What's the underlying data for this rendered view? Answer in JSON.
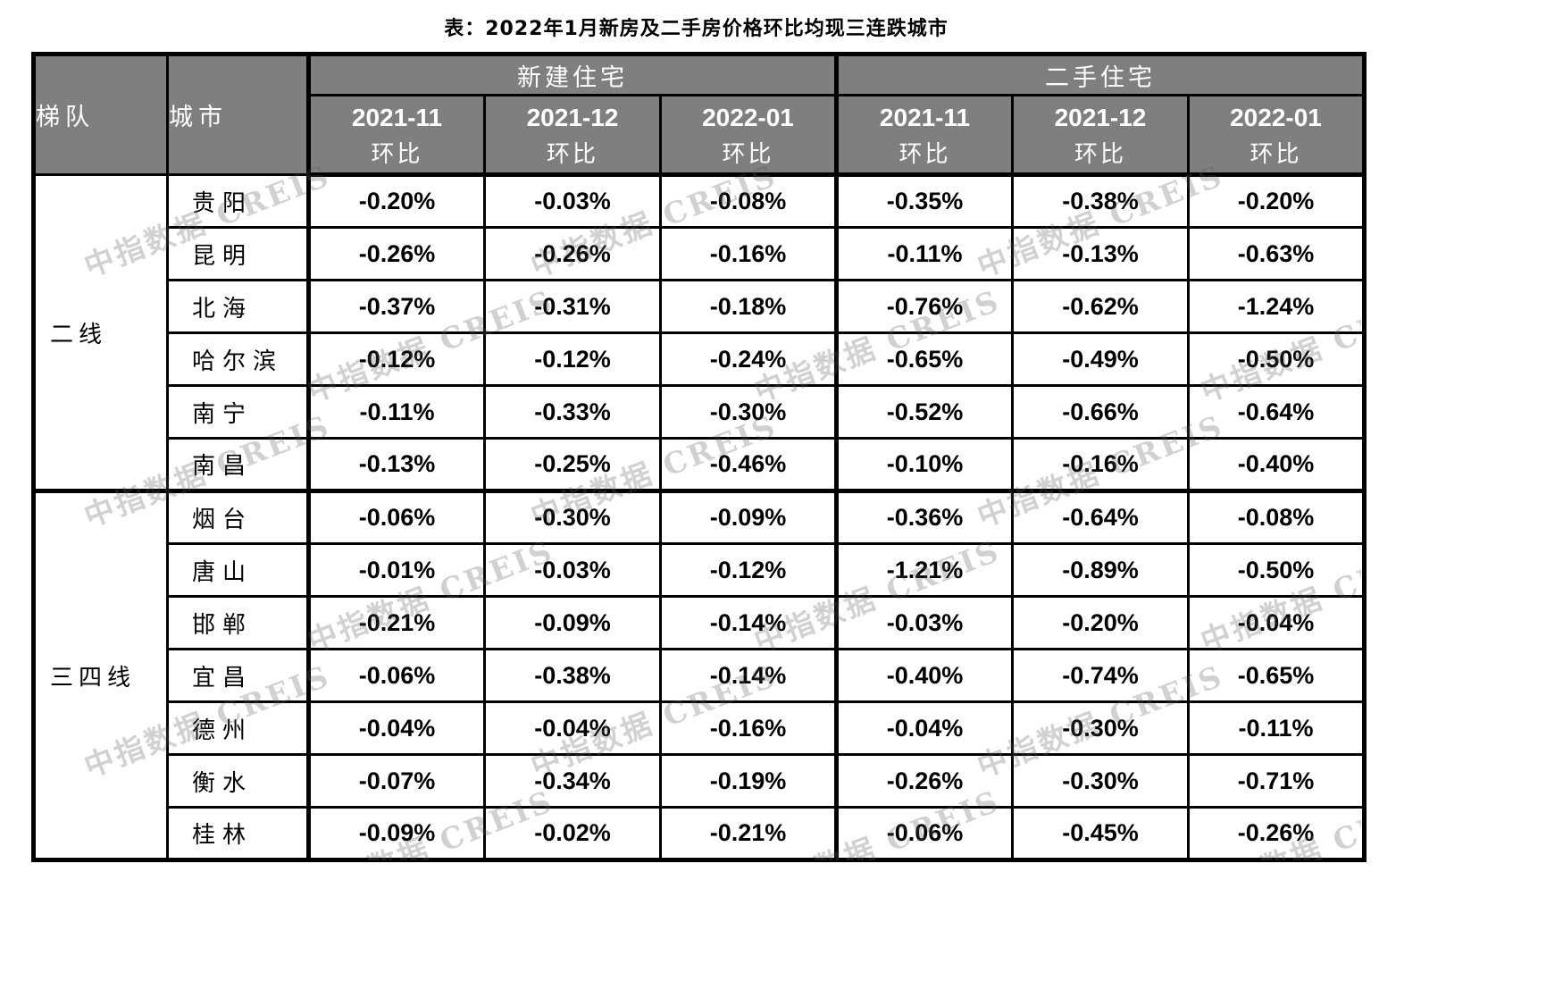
{
  "title": "表：2022年1月新房及二手房价格环比均现三连跌城市",
  "watermark": {
    "text": "中指数据 CREIS"
  },
  "table": {
    "corner_headers": [
      "梯队",
      "城市"
    ],
    "groups": [
      {
        "label": "新建住宅"
      },
      {
        "label": "二手住宅"
      }
    ],
    "periods": [
      "2021-11",
      "2021-12",
      "2022-01"
    ],
    "period_sub_label": "环比",
    "tiers": [
      {
        "label": "二线",
        "rows": [
          {
            "city": "贵阳",
            "new_home": [
              "-0.20%",
              "-0.03%",
              "-0.08%"
            ],
            "second_hand": [
              "-0.35%",
              "-0.38%",
              "-0.20%"
            ]
          },
          {
            "city": "昆明",
            "new_home": [
              "-0.26%",
              "-0.26%",
              "-0.16%"
            ],
            "second_hand": [
              "-0.11%",
              "-0.13%",
              "-0.63%"
            ]
          },
          {
            "city": "北海",
            "new_home": [
              "-0.37%",
              "-0.31%",
              "-0.18%"
            ],
            "second_hand": [
              "-0.76%",
              "-0.62%",
              "-1.24%"
            ]
          },
          {
            "city": "哈尔滨",
            "new_home": [
              "-0.12%",
              "-0.12%",
              "-0.24%"
            ],
            "second_hand": [
              "-0.65%",
              "-0.49%",
              "-0.50%"
            ]
          },
          {
            "city": "南宁",
            "new_home": [
              "-0.11%",
              "-0.33%",
              "-0.30%"
            ],
            "second_hand": [
              "-0.52%",
              "-0.66%",
              "-0.64%"
            ]
          },
          {
            "city": "南昌",
            "new_home": [
              "-0.13%",
              "-0.25%",
              "-0.46%"
            ],
            "second_hand": [
              "-0.10%",
              "-0.16%",
              "-0.40%"
            ]
          }
        ]
      },
      {
        "label": "三四线",
        "rows": [
          {
            "city": "烟台",
            "new_home": [
              "-0.06%",
              "-0.30%",
              "-0.09%"
            ],
            "second_hand": [
              "-0.36%",
              "-0.64%",
              "-0.08%"
            ]
          },
          {
            "city": "唐山",
            "new_home": [
              "-0.01%",
              "-0.03%",
              "-0.12%"
            ],
            "second_hand": [
              "-1.21%",
              "-0.89%",
              "-0.50%"
            ]
          },
          {
            "city": "邯郸",
            "new_home": [
              "-0.21%",
              "-0.09%",
              "-0.14%"
            ],
            "second_hand": [
              "-0.03%",
              "-0.20%",
              "-0.04%"
            ]
          },
          {
            "city": "宜昌",
            "new_home": [
              "-0.06%",
              "-0.38%",
              "-0.14%"
            ],
            "second_hand": [
              "-0.40%",
              "-0.74%",
              "-0.65%"
            ]
          },
          {
            "city": "德州",
            "new_home": [
              "-0.04%",
              "-0.04%",
              "-0.16%"
            ],
            "second_hand": [
              "-0.04%",
              "-0.30%",
              "-0.11%"
            ]
          },
          {
            "city": "衡水",
            "new_home": [
              "-0.07%",
              "-0.34%",
              "-0.19%"
            ],
            "second_hand": [
              "-0.26%",
              "-0.30%",
              "-0.71%"
            ]
          },
          {
            "city": "桂林",
            "new_home": [
              "-0.09%",
              "-0.02%",
              "-0.21%"
            ],
            "second_hand": [
              "-0.06%",
              "-0.45%",
              "-0.26%"
            ]
          }
        ]
      }
    ]
  },
  "colors": {
    "header_bg": "#7f7f7f",
    "header_text": "#ffffff",
    "cell_text": "#000000",
    "border": "#000000"
  }
}
